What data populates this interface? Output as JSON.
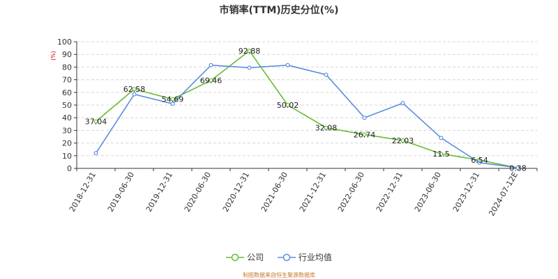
{
  "chart_data": {
    "type": "line",
    "title": "市销率(TTM)历史分位(%)",
    "ylabel": "(%)",
    "ylim": [
      0,
      100
    ],
    "yticks": [
      0,
      10,
      20,
      30,
      40,
      50,
      60,
      70,
      80,
      90,
      100
    ],
    "categories": [
      "2018-12-31",
      "2019-06-30",
      "2019-12-31",
      "2020-06-30",
      "2020-12-31",
      "2021-06-30",
      "2021-12-31",
      "2022-06-30",
      "2022-12-31",
      "2023-06-30",
      "2023-12-31",
      "2024-07-12E"
    ],
    "grid": true,
    "legend_position": "bottom",
    "series": [
      {
        "name": "公司",
        "color": "#66bb33",
        "values": [
          37.04,
          62.58,
          54.69,
          69.46,
          92.88,
          50.02,
          32.08,
          26.74,
          22.03,
          11.5,
          6.54,
          0.38
        ],
        "labels": [
          "37.04",
          "62.58",
          "54.69",
          "69.46",
          "92.88",
          "50.02",
          "32.08",
          "26.74",
          "22.03",
          "11.5",
          "6.54",
          "0.38"
        ]
      },
      {
        "name": "行业均值",
        "color": "#5b8ee0",
        "values": [
          12,
          58.5,
          51,
          81.5,
          79.5,
          81.5,
          74,
          40,
          51.5,
          24,
          4.5,
          0.5
        ]
      }
    ],
    "source": "制图数据来自恒生聚源数据库"
  }
}
